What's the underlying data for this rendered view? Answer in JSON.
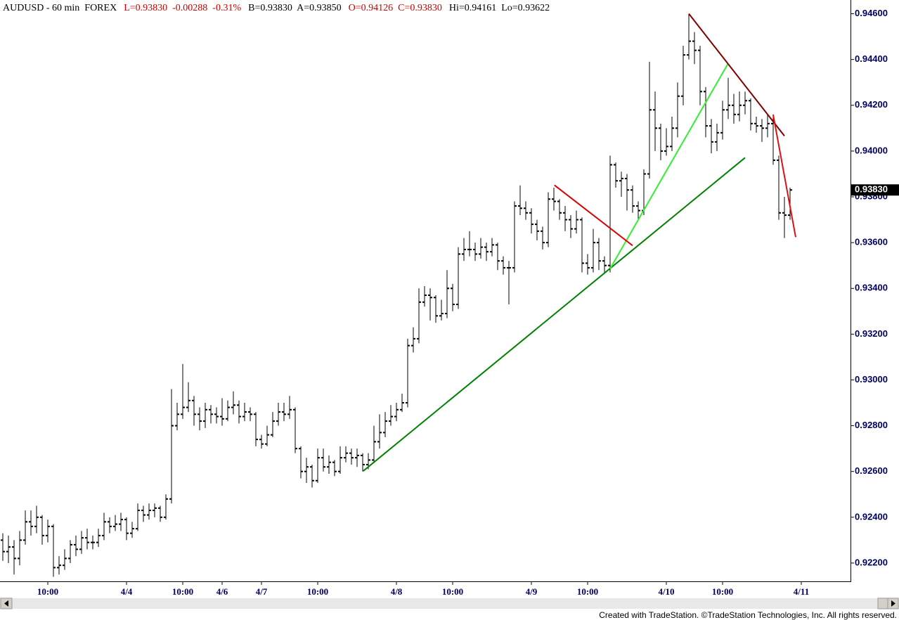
{
  "chart_data": {
    "type": "ohlc",
    "header_items": [
      {
        "text": "AUDUSD - 60 min  FOREX",
        "color": "#000000"
      },
      {
        "text": "L=0.93830  -0.00288  -0.31%",
        "color": "#cc0000"
      },
      {
        "text": "B=0.93830  A=0.93850",
        "color": "#000000"
      },
      {
        "text": "O=0.94126  C=0.93830",
        "color": "#cc0000"
      },
      {
        "text": "Hi=0.94161  Lo=0.93622",
        "color": "#000000"
      }
    ],
    "footer": "Created with TradeStation. ©TradeStation Technologies, Inc. All rights reserved.",
    "bar_color": "#000000",
    "ylim": [
      0.9212,
      0.9466
    ],
    "yticks": [
      {
        "value": 0.922,
        "label": "0.92200"
      },
      {
        "value": 0.924,
        "label": "0.92400"
      },
      {
        "value": 0.926,
        "label": "0.92600"
      },
      {
        "value": 0.928,
        "label": "0.92800"
      },
      {
        "value": 0.93,
        "label": "0.93000"
      },
      {
        "value": 0.932,
        "label": "0.93200"
      },
      {
        "value": 0.934,
        "label": "0.93400"
      },
      {
        "value": 0.936,
        "label": "0.93600"
      },
      {
        "value": 0.938,
        "label": "0.93800"
      },
      {
        "value": 0.94,
        "label": "0.94000"
      },
      {
        "value": 0.942,
        "label": "0.94200"
      },
      {
        "value": 0.944,
        "label": "0.94400"
      },
      {
        "value": 0.946,
        "label": "0.94600"
      }
    ],
    "xlim": [
      -0.5,
      150.75
    ],
    "xticks": [
      {
        "value": 8,
        "label": "10:00"
      },
      {
        "value": 22,
        "label": "4/4"
      },
      {
        "value": 32,
        "label": "10:00"
      },
      {
        "value": 39,
        "label": "4/6"
      },
      {
        "value": 46,
        "label": "4/7"
      },
      {
        "value": 56,
        "label": "10:00"
      },
      {
        "value": 70,
        "label": "4/8"
      },
      {
        "value": 80,
        "label": "10:00"
      },
      {
        "value": 94,
        "label": "4/9"
      },
      {
        "value": 104,
        "label": "10:00"
      },
      {
        "value": 118,
        "label": "4/10"
      },
      {
        "value": 128,
        "label": "10:00"
      },
      {
        "value": 142,
        "label": "4/11"
      }
    ],
    "last_price": {
      "value": 0.9383,
      "label": "0.93830"
    },
    "open": [
      0.923,
      0.9225,
      0.9227,
      0.9222,
      0.923,
      0.9238,
      0.9236,
      0.924,
      0.9232,
      0.9236,
      0.9218,
      0.9219,
      0.9222,
      0.9228,
      0.9226,
      0.9231,
      0.9229,
      0.9229,
      0.9232,
      0.9238,
      0.9236,
      0.9237,
      0.9239,
      0.9233,
      0.9235,
      0.9243,
      0.9241,
      0.9243,
      0.9244,
      0.924,
      0.9248,
      0.928,
      0.9285,
      0.9288,
      0.9291,
      0.9285,
      0.9282,
      0.9287,
      0.9285,
      0.9284,
      0.9283,
      0.9288,
      0.9289,
      0.9284,
      0.9286,
      0.9285,
      0.9274,
      0.9272,
      0.9276,
      0.9282,
      0.9286,
      0.9285,
      0.9287,
      0.927,
      0.926,
      0.9262,
      0.9256,
      0.9266,
      0.9262,
      0.9264,
      0.926,
      0.9266,
      0.9268,
      0.9266,
      0.9267,
      0.9263,
      0.9265,
      0.9273,
      0.9277,
      0.9282,
      0.9284,
      0.9287,
      0.929,
      0.9315,
      0.9318,
      0.9334,
      0.9337,
      0.9336,
      0.9328,
      0.9329,
      0.934,
      0.9333,
      0.9355,
      0.9357,
      0.9357,
      0.9355,
      0.9358,
      0.9356,
      0.9359,
      0.9352,
      0.9349,
      0.9349,
      0.9376,
      0.9375,
      0.9373,
      0.9368,
      0.9365,
      0.936,
      0.9379,
      0.9378,
      0.9373,
      0.937,
      0.9366,
      0.937,
      0.9351,
      0.9349,
      0.936,
      0.9352,
      0.935,
      0.9394,
      0.9387,
      0.9388,
      0.9383,
      0.9376,
      0.9374,
      0.939,
      0.9418,
      0.941,
      0.94,
      0.9402,
      0.941,
      0.9424,
      0.9442,
      0.9448,
      0.9444,
      0.9426,
      0.9411,
      0.9404,
      0.9408,
      0.9418,
      0.942,
      0.9416,
      0.942,
      0.9422,
      0.9412,
      0.9411,
      0.941,
      0.9412,
      0.9396,
      0.9373,
      0.9372
    ],
    "high": [
      0.9233,
      0.9232,
      0.923,
      0.9234,
      0.9243,
      0.9243,
      0.9245,
      0.9241,
      0.9239,
      0.9237,
      0.9223,
      0.9226,
      0.923,
      0.9232,
      0.9234,
      0.9235,
      0.9232,
      0.9235,
      0.9242,
      0.924,
      0.9241,
      0.9242,
      0.924,
      0.9238,
      0.9246,
      0.9245,
      0.9246,
      0.9246,
      0.9245,
      0.925,
      0.9296,
      0.929,
      0.9307,
      0.9299,
      0.9293,
      0.9288,
      0.929,
      0.9289,
      0.9288,
      0.9292,
      0.9291,
      0.9295,
      0.9291,
      0.929,
      0.9288,
      0.9286,
      0.9276,
      0.928,
      0.9286,
      0.929,
      0.929,
      0.9293,
      0.9288,
      0.9271,
      0.9266,
      0.9263,
      0.927,
      0.927,
      0.9267,
      0.9265,
      0.9271,
      0.9271,
      0.927,
      0.927,
      0.9268,
      0.9268,
      0.928,
      0.9285,
      0.9286,
      0.9289,
      0.929,
      0.9294,
      0.9318,
      0.9323,
      0.934,
      0.9341,
      0.934,
      0.9337,
      0.9335,
      0.9348,
      0.9342,
      0.9358,
      0.9362,
      0.9365,
      0.936,
      0.9362,
      0.936,
      0.9362,
      0.936,
      0.9354,
      0.9352,
      0.9378,
      0.9385,
      0.9378,
      0.9375,
      0.937,
      0.9367,
      0.9382,
      0.9384,
      0.9379,
      0.9376,
      0.9372,
      0.9374,
      0.9371,
      0.9355,
      0.9366,
      0.9362,
      0.9354,
      0.9398,
      0.9395,
      0.9391,
      0.939,
      0.9385,
      0.9378,
      0.9392,
      0.9439,
      0.9426,
      0.9412,
      0.941,
      0.9415,
      0.943,
      0.9446,
      0.946,
      0.9452,
      0.9446,
      0.9428,
      0.9414,
      0.9412,
      0.9422,
      0.9432,
      0.9425,
      0.9426,
      0.9426,
      0.9423,
      0.9415,
      0.9414,
      0.9416,
      0.9416,
      0.9398,
      0.938,
      0.9384
    ],
    "low": [
      0.9221,
      0.922,
      0.9215,
      0.9219,
      0.9228,
      0.9232,
      0.9233,
      0.9228,
      0.9229,
      0.9214,
      0.9215,
      0.9217,
      0.922,
      0.9223,
      0.9224,
      0.9226,
      0.9226,
      0.9227,
      0.923,
      0.9233,
      0.9234,
      0.9234,
      0.923,
      0.9231,
      0.9234,
      0.9238,
      0.9239,
      0.924,
      0.9238,
      0.9239,
      0.9246,
      0.9278,
      0.9283,
      0.9286,
      0.928,
      0.9278,
      0.9279,
      0.9281,
      0.9281,
      0.928,
      0.9282,
      0.9285,
      0.9281,
      0.9282,
      0.9282,
      0.9271,
      0.927,
      0.9271,
      0.9275,
      0.928,
      0.9282,
      0.9283,
      0.9268,
      0.9257,
      0.9255,
      0.9253,
      0.9255,
      0.926,
      0.9259,
      0.9258,
      0.9259,
      0.9264,
      0.9263,
      0.9262,
      0.926,
      0.9261,
      0.9264,
      0.927,
      0.9275,
      0.928,
      0.9282,
      0.9286,
      0.9288,
      0.9312,
      0.9316,
      0.9332,
      0.9326,
      0.9325,
      0.9326,
      0.9327,
      0.933,
      0.9331,
      0.9352,
      0.9354,
      0.9352,
      0.9353,
      0.9352,
      0.9354,
      0.9348,
      0.9346,
      0.9333,
      0.9347,
      0.9372,
      0.937,
      0.9364,
      0.9361,
      0.9357,
      0.9358,
      0.9374,
      0.937,
      0.9365,
      0.9362,
      0.9364,
      0.9347,
      0.9346,
      0.9347,
      0.9348,
      0.9347,
      0.9347,
      0.9384,
      0.938,
      0.9374,
      0.9373,
      0.937,
      0.9372,
      0.9388,
      0.94,
      0.9396,
      0.9398,
      0.94,
      0.9406,
      0.942,
      0.944,
      0.9438,
      0.942,
      0.9406,
      0.9399,
      0.94,
      0.9405,
      0.9414,
      0.9412,
      0.9413,
      0.9416,
      0.9409,
      0.9408,
      0.9404,
      0.9406,
      0.9394,
      0.937,
      0.9362,
      0.937
    ],
    "close": [
      0.9225,
      0.9227,
      0.9222,
      0.923,
      0.9238,
      0.9236,
      0.924,
      0.9232,
      0.9236,
      0.9218,
      0.9219,
      0.9222,
      0.9228,
      0.9226,
      0.9231,
      0.9229,
      0.9229,
      0.9232,
      0.9238,
      0.9236,
      0.9237,
      0.9239,
      0.9233,
      0.9235,
      0.9243,
      0.9241,
      0.9243,
      0.9244,
      0.924,
      0.9248,
      0.928,
      0.9285,
      0.9288,
      0.9291,
      0.9285,
      0.9282,
      0.9287,
      0.9285,
      0.9284,
      0.9283,
      0.9288,
      0.9289,
      0.9284,
      0.9286,
      0.9285,
      0.9274,
      0.9272,
      0.9276,
      0.9282,
      0.9286,
      0.9285,
      0.9287,
      0.927,
      0.926,
      0.9262,
      0.9256,
      0.9266,
      0.9262,
      0.9264,
      0.926,
      0.9266,
      0.9268,
      0.9266,
      0.9267,
      0.9263,
      0.9265,
      0.9273,
      0.9277,
      0.9282,
      0.9284,
      0.9287,
      0.929,
      0.9315,
      0.9318,
      0.9334,
      0.9337,
      0.9336,
      0.9328,
      0.9329,
      0.934,
      0.9333,
      0.9355,
      0.9357,
      0.9357,
      0.9355,
      0.9358,
      0.9356,
      0.9359,
      0.9352,
      0.9349,
      0.9349,
      0.9376,
      0.9375,
      0.9373,
      0.9368,
      0.9365,
      0.936,
      0.9379,
      0.9378,
      0.9373,
      0.937,
      0.9366,
      0.937,
      0.9351,
      0.9349,
      0.936,
      0.9352,
      0.935,
      0.9394,
      0.9387,
      0.9388,
      0.9383,
      0.9376,
      0.9374,
      0.939,
      0.9418,
      0.941,
      0.94,
      0.9402,
      0.941,
      0.9424,
      0.9442,
      0.9448,
      0.9444,
      0.9426,
      0.9411,
      0.9404,
      0.9408,
      0.9418,
      0.942,
      0.9416,
      0.942,
      0.9422,
      0.9412,
      0.9411,
      0.941,
      0.9412,
      0.9396,
      0.9373,
      0.9372,
      0.9383
    ],
    "trendlines": [
      {
        "color": "#008000",
        "x": [
          64.1,
          132
        ],
        "y": [
          0.92602,
          0.93971
        ]
      },
      {
        "color": "#33ee33",
        "x": [
          108,
          128.9
        ],
        "y": [
          0.93486,
          0.94379
        ]
      },
      {
        "color": "#dd0000",
        "x": [
          98.1,
          112
        ],
        "y": [
          0.93851,
          0.93587
        ]
      },
      {
        "color": "#800000",
        "x": [
          122,
          139
        ],
        "y": [
          0.946,
          0.94066
        ]
      },
      {
        "color": "#dd1111",
        "x": [
          137,
          141
        ],
        "y": [
          0.94158,
          0.93624
        ]
      }
    ]
  }
}
